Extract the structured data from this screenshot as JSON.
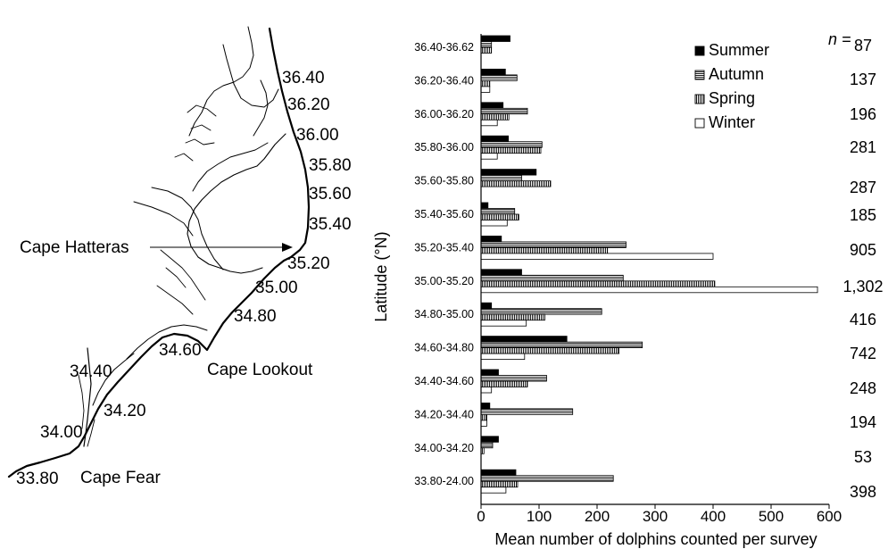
{
  "map": {
    "latitude_labels": [
      "36.40",
      "36.20",
      "36.00",
      "35.80",
      "35.60",
      "35.40",
      "35.20",
      "35.00",
      "34.80",
      "34.60",
      "34.40",
      "34.20",
      "34.00",
      "33.80"
    ],
    "capes": {
      "hatteras": "Cape Hatteras",
      "lookout": "Cape Lookout",
      "fear": "Cape Fear"
    }
  },
  "chart_data": {
    "type": "bar",
    "orientation": "horizontal",
    "categories": [
      "36.40-36.62",
      "36.20-36.40",
      "36.00-36.20",
      "35.80-36.00",
      "35.60-35.80",
      "35.40-35.60",
      "35.20-35.40",
      "35.00-35.20",
      "34.80-35.00",
      "34.60-34.80",
      "34.40-34.60",
      "34.20-34.40",
      "34.00-34.20",
      "33.80-24.00"
    ],
    "series": [
      {
        "name": "Summer",
        "pattern": "solid",
        "values": [
          50,
          42,
          38,
          47,
          95,
          12,
          35,
          70,
          18,
          148,
          30,
          15,
          30,
          60
        ]
      },
      {
        "name": "Autumn",
        "pattern": "horizontal-lines",
        "values": [
          18,
          62,
          80,
          105,
          70,
          58,
          250,
          245,
          208,
          278,
          113,
          158,
          20,
          228
        ]
      },
      {
        "name": "Spring",
        "pattern": "vertical-lines",
        "values": [
          18,
          15,
          48,
          103,
          120,
          65,
          218,
          403,
          110,
          238,
          80,
          10,
          5,
          63
        ]
      },
      {
        "name": "Winter",
        "pattern": "open",
        "values": [
          0,
          15,
          28,
          28,
          0,
          45,
          400,
          580,
          78,
          75,
          18,
          10,
          0,
          43
        ]
      }
    ],
    "n_header": "n =",
    "n_values": [
      "87",
      "137",
      "196",
      "281",
      "287",
      "185",
      "905",
      "1,302",
      "416",
      "742",
      "248",
      "194",
      "53",
      "398"
    ],
    "xlabel": "Mean number of dolphins counted per survey",
    "ylabel": "Latitude (°N)",
    "xlim": [
      0,
      600
    ],
    "x_ticks": [
      "0",
      "100",
      "200",
      "300",
      "400",
      "500",
      "600"
    ],
    "grid": false,
    "legend_position": "top-right"
  }
}
